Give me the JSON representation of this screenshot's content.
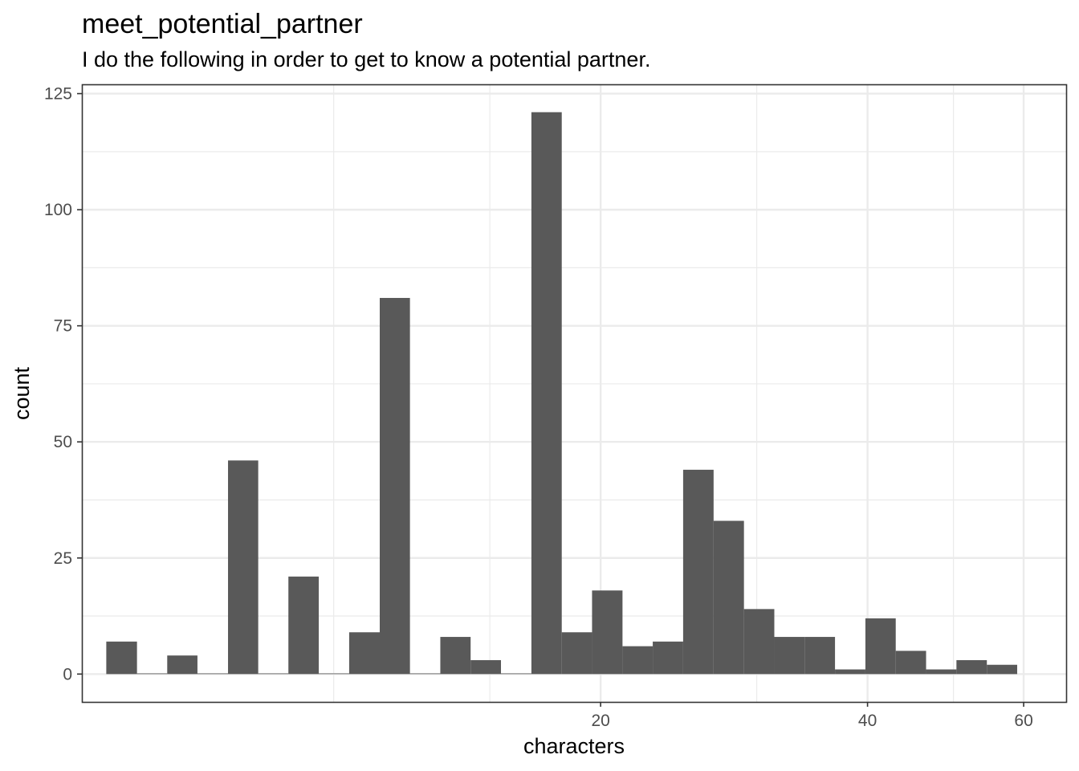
{
  "chart_data": {
    "type": "bar",
    "title": "meet_potential_partner",
    "subtitle": "I do the following in order to get to know a potential partner.",
    "xlabel": "characters",
    "ylabel": "count",
    "x_scale": "log10",
    "xlim": [
      5.2,
      67
    ],
    "ylim": [
      -6,
      127
    ],
    "x_ticks": [
      20,
      40,
      60
    ],
    "x_tick_labels": [
      "20",
      "40",
      "60"
    ],
    "y_ticks": [
      0,
      25,
      50,
      75,
      100,
      125
    ],
    "y_tick_labels": [
      "0",
      "25",
      "50",
      "75",
      "100",
      "125"
    ],
    "grid": true,
    "legend": "none",
    "bar_color": "#595959",
    "bins": [
      {
        "x0": 5.54,
        "x1": 6.0,
        "count": 7
      },
      {
        "x0": 6.0,
        "x1": 6.49,
        "count": 0
      },
      {
        "x0": 6.49,
        "x1": 7.02,
        "count": 4
      },
      {
        "x0": 7.02,
        "x1": 7.6,
        "count": 0
      },
      {
        "x0": 7.6,
        "x1": 8.22,
        "count": 46
      },
      {
        "x0": 8.22,
        "x1": 8.89,
        "count": 0
      },
      {
        "x0": 8.89,
        "x1": 9.62,
        "count": 21
      },
      {
        "x0": 9.62,
        "x1": 10.41,
        "count": 0
      },
      {
        "x0": 10.41,
        "x1": 11.27,
        "count": 9
      },
      {
        "x0": 11.27,
        "x1": 12.19,
        "count": 81
      },
      {
        "x0": 12.19,
        "x1": 13.19,
        "count": 0
      },
      {
        "x0": 13.19,
        "x1": 14.27,
        "count": 8
      },
      {
        "x0": 14.27,
        "x1": 15.44,
        "count": 3
      },
      {
        "x0": 15.44,
        "x1": 16.71,
        "count": 0
      },
      {
        "x0": 16.71,
        "x1": 18.08,
        "count": 121
      },
      {
        "x0": 18.08,
        "x1": 19.56,
        "count": 9
      },
      {
        "x0": 19.56,
        "x1": 21.17,
        "count": 18
      },
      {
        "x0": 21.17,
        "x1": 22.9,
        "count": 6
      },
      {
        "x0": 22.9,
        "x1": 24.78,
        "count": 7
      },
      {
        "x0": 24.78,
        "x1": 26.82,
        "count": 44
      },
      {
        "x0": 26.82,
        "x1": 29.02,
        "count": 33
      },
      {
        "x0": 29.02,
        "x1": 31.4,
        "count": 14
      },
      {
        "x0": 31.4,
        "x1": 33.97,
        "count": 8
      },
      {
        "x0": 33.97,
        "x1": 36.76,
        "count": 8
      },
      {
        "x0": 36.76,
        "x1": 39.78,
        "count": 1
      },
      {
        "x0": 39.78,
        "x1": 43.04,
        "count": 12
      },
      {
        "x0": 43.04,
        "x1": 46.57,
        "count": 5
      },
      {
        "x0": 46.57,
        "x1": 50.39,
        "count": 1
      },
      {
        "x0": 50.39,
        "x1": 54.53,
        "count": 3
      },
      {
        "x0": 54.53,
        "x1": 59.0,
        "count": 2
      }
    ]
  }
}
